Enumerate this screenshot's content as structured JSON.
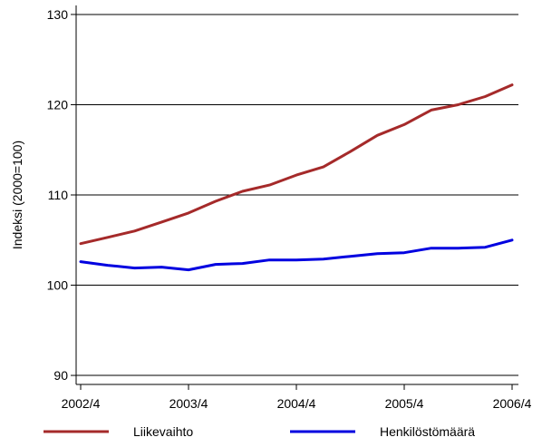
{
  "chart_data": {
    "type": "line",
    "ylabel": "Indeksi (2000=100)",
    "xlabel": "",
    "x_ticks": [
      "2002/4",
      "2003/4",
      "2004/4",
      "2005/4",
      "2006/4"
    ],
    "ylim": [
      89,
      131
    ],
    "y_ticks": [
      90,
      100,
      110,
      120,
      130
    ],
    "grid": "horizontal",
    "legend_position": "bottom",
    "x_quarters": [
      0,
      1,
      2,
      3,
      4,
      5,
      6,
      7,
      8,
      9,
      10,
      11,
      12,
      13,
      14,
      15,
      16
    ],
    "series": [
      {
        "name": "Liikevaihto",
        "color": "#a52a2a",
        "values": [
          104.6,
          105.3,
          106.0,
          107.0,
          108.0,
          109.3,
          110.4,
          111.1,
          112.2,
          113.1,
          114.8,
          116.6,
          117.8,
          119.4,
          120.0,
          120.9,
          122.2
        ]
      },
      {
        "name": "Henkilöstömäärä",
        "color": "#0000e0",
        "values": [
          102.6,
          102.2,
          101.9,
          102.0,
          101.7,
          102.3,
          102.4,
          102.8,
          102.8,
          102.9,
          103.2,
          103.5,
          103.6,
          104.1,
          104.1,
          104.2,
          105.0
        ]
      }
    ]
  }
}
